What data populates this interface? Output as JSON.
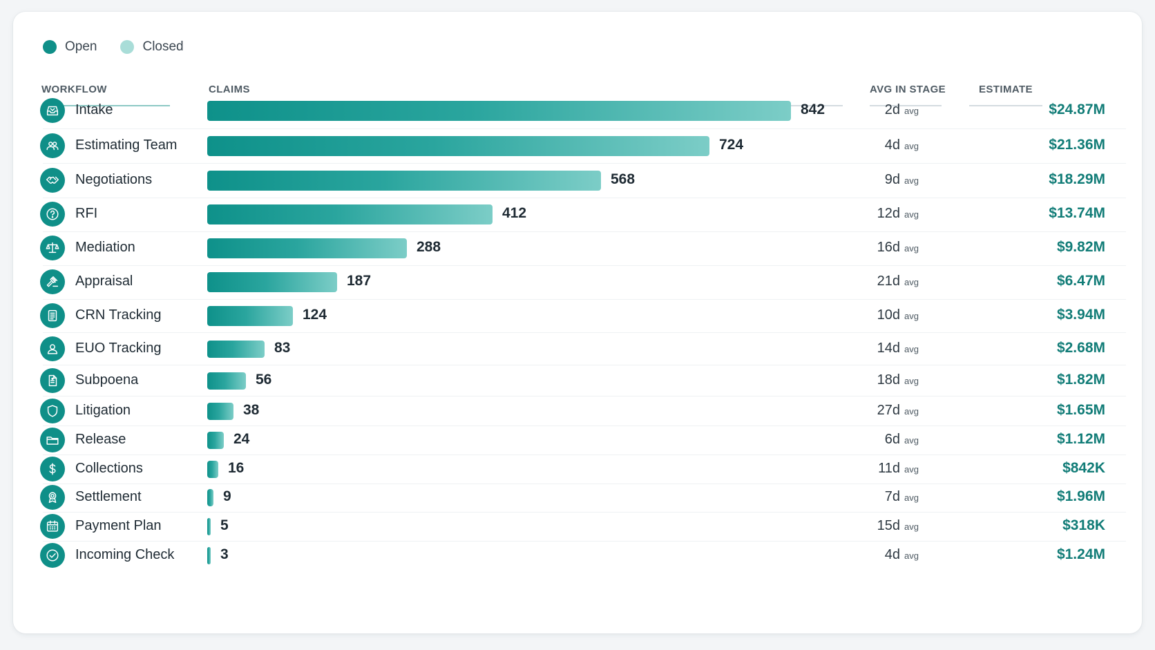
{
  "legend": {
    "open": "Open",
    "closed": "Closed"
  },
  "columns": {
    "workflow": "WORKFLOW",
    "claims": "CLAIMS",
    "avg": "AVG IN STAGE",
    "estimate": "ESTIMATE"
  },
  "colors": {
    "accent": "#0f8f88",
    "closed": "#a9ddd8",
    "estimate_text": "#117c77"
  },
  "avg_unit": "avg",
  "max_claims": 842,
  "rows": [
    {
      "name": "Intake",
      "icon": "inbox-icon",
      "claims": 842,
      "claims_label": "842",
      "avg": "2d",
      "estimate": "$24.87M"
    },
    {
      "name": "Estimating Team",
      "icon": "team-icon",
      "claims": 724,
      "claims_label": "724",
      "avg": "4d",
      "estimate": "$21.36M"
    },
    {
      "name": "Negotiations",
      "icon": "handshake-icon",
      "claims": 568,
      "claims_label": "568",
      "avg": "9d",
      "estimate": "$18.29M"
    },
    {
      "name": "RFI",
      "icon": "question-icon",
      "claims": 412,
      "claims_label": "412",
      "avg": "12d",
      "estimate": "$13.74M"
    },
    {
      "name": "Mediation",
      "icon": "scales-icon",
      "claims": 288,
      "claims_label": "288",
      "avg": "16d",
      "estimate": "$9.82M"
    },
    {
      "name": "Appraisal",
      "icon": "gavel-icon",
      "claims": 187,
      "claims_label": "187",
      "avg": "21d",
      "estimate": "$6.47M"
    },
    {
      "name": "CRN Tracking",
      "icon": "document-icon",
      "claims": 124,
      "claims_label": "124",
      "avg": "10d",
      "estimate": "$3.94M"
    },
    {
      "name": "EUO Tracking",
      "icon": "person-icon",
      "claims": 83,
      "claims_label": "83",
      "avg": "14d",
      "estimate": "$2.68M"
    },
    {
      "name": "Subpoena",
      "icon": "legal-document-icon",
      "claims": 56,
      "claims_label": "56",
      "avg": "18d",
      "estimate": "$1.82M"
    },
    {
      "name": "Litigation",
      "icon": "shield-icon",
      "claims": 38,
      "claims_label": "38",
      "avg": "27d",
      "estimate": "$1.65M"
    },
    {
      "name": "Release",
      "icon": "folder-icon",
      "claims": 24,
      "claims_label": "24",
      "avg": "6d",
      "estimate": "$1.12M"
    },
    {
      "name": "Collections",
      "icon": "dollar-icon",
      "claims": 16,
      "claims_label": "16",
      "avg": "11d",
      "estimate": "$842K"
    },
    {
      "name": "Settlement",
      "icon": "award-icon",
      "claims": 9,
      "claims_label": "9",
      "avg": "7d",
      "estimate": "$1.96M"
    },
    {
      "name": "Payment Plan",
      "icon": "calendar-icon",
      "claims": 5,
      "claims_label": "5",
      "avg": "15d",
      "estimate": "$318K"
    },
    {
      "name": "Incoming Check",
      "icon": "check-circle-icon",
      "claims": 3,
      "claims_label": "3",
      "avg": "4d",
      "estimate": "$1.24M"
    }
  ]
}
